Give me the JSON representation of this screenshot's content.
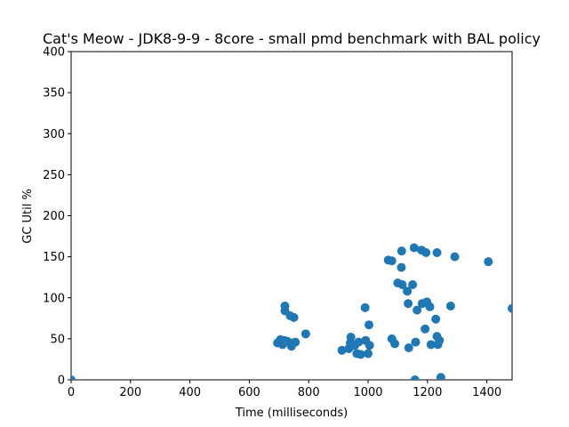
{
  "chart_data": {
    "type": "scatter",
    "title": "Cat's Meow - JDK8-9-9 - 8core -  small pmd benchmark with BAL policy",
    "xlabel": "Time (milliseconds)",
    "ylabel": "GC Util %",
    "xlim": [
      0,
      1485
    ],
    "ylim": [
      0,
      400
    ],
    "xticks": [
      0,
      200,
      400,
      600,
      800,
      1000,
      1200,
      1400
    ],
    "yticks": [
      0,
      50,
      100,
      150,
      200,
      250,
      300,
      350,
      400
    ],
    "grid": false,
    "marker_color": "#1f77b4",
    "series": [
      {
        "points": [
          [
            0,
            0
          ],
          [
            695,
            45
          ],
          [
            705,
            49
          ],
          [
            712,
            43
          ],
          [
            718,
            48
          ],
          [
            720,
            84
          ],
          [
            720,
            90
          ],
          [
            728,
            47
          ],
          [
            738,
            78
          ],
          [
            742,
            41
          ],
          [
            745,
            45
          ],
          [
            750,
            76
          ],
          [
            755,
            46
          ],
          [
            790,
            56
          ],
          [
            912,
            36
          ],
          [
            935,
            38
          ],
          [
            940,
            45
          ],
          [
            942,
            52
          ],
          [
            955,
            42
          ],
          [
            962,
            32
          ],
          [
            968,
            46
          ],
          [
            975,
            31
          ],
          [
            990,
            88
          ],
          [
            992,
            48
          ],
          [
            1000,
            32
          ],
          [
            1003,
            67
          ],
          [
            1005,
            42
          ],
          [
            1068,
            146
          ],
          [
            1080,
            145
          ],
          [
            1080,
            50
          ],
          [
            1090,
            44
          ],
          [
            1100,
            118
          ],
          [
            1112,
            137
          ],
          [
            1113,
            157
          ],
          [
            1115,
            116
          ],
          [
            1132,
            108
          ],
          [
            1135,
            93
          ],
          [
            1137,
            39
          ],
          [
            1150,
            116
          ],
          [
            1155,
            161
          ],
          [
            1158,
            0
          ],
          [
            1160,
            46
          ],
          [
            1165,
            85
          ],
          [
            1180,
            158
          ],
          [
            1182,
            93
          ],
          [
            1192,
            62
          ],
          [
            1195,
            155
          ],
          [
            1198,
            95
          ],
          [
            1208,
            89
          ],
          [
            1212,
            43
          ],
          [
            1228,
            74
          ],
          [
            1232,
            155
          ],
          [
            1232,
            53
          ],
          [
            1235,
            43
          ],
          [
            1240,
            48
          ],
          [
            1245,
            3
          ],
          [
            1278,
            90
          ],
          [
            1292,
            150
          ],
          [
            1405,
            144
          ],
          [
            1485,
            87
          ]
        ]
      }
    ]
  }
}
